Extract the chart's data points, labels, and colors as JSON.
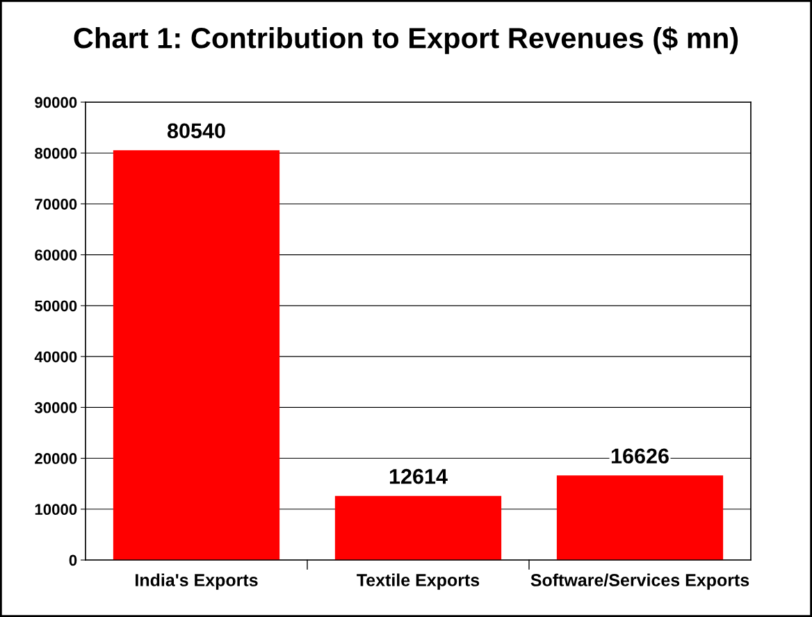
{
  "chart_data": {
    "type": "bar",
    "title": "Chart 1: Contribution to Export Revenues ($ mn)",
    "categories": [
      "India's Exports",
      "Textile Exports",
      "Software/Services Exports"
    ],
    "values": [
      80540,
      12614,
      16626
    ],
    "color": "#ff0000",
    "ylim": [
      0,
      90000
    ],
    "yticks": [
      0,
      10000,
      20000,
      30000,
      40000,
      50000,
      60000,
      70000,
      80000,
      90000
    ],
    "grid": "y",
    "data_labels": true,
    "legend": false
  }
}
